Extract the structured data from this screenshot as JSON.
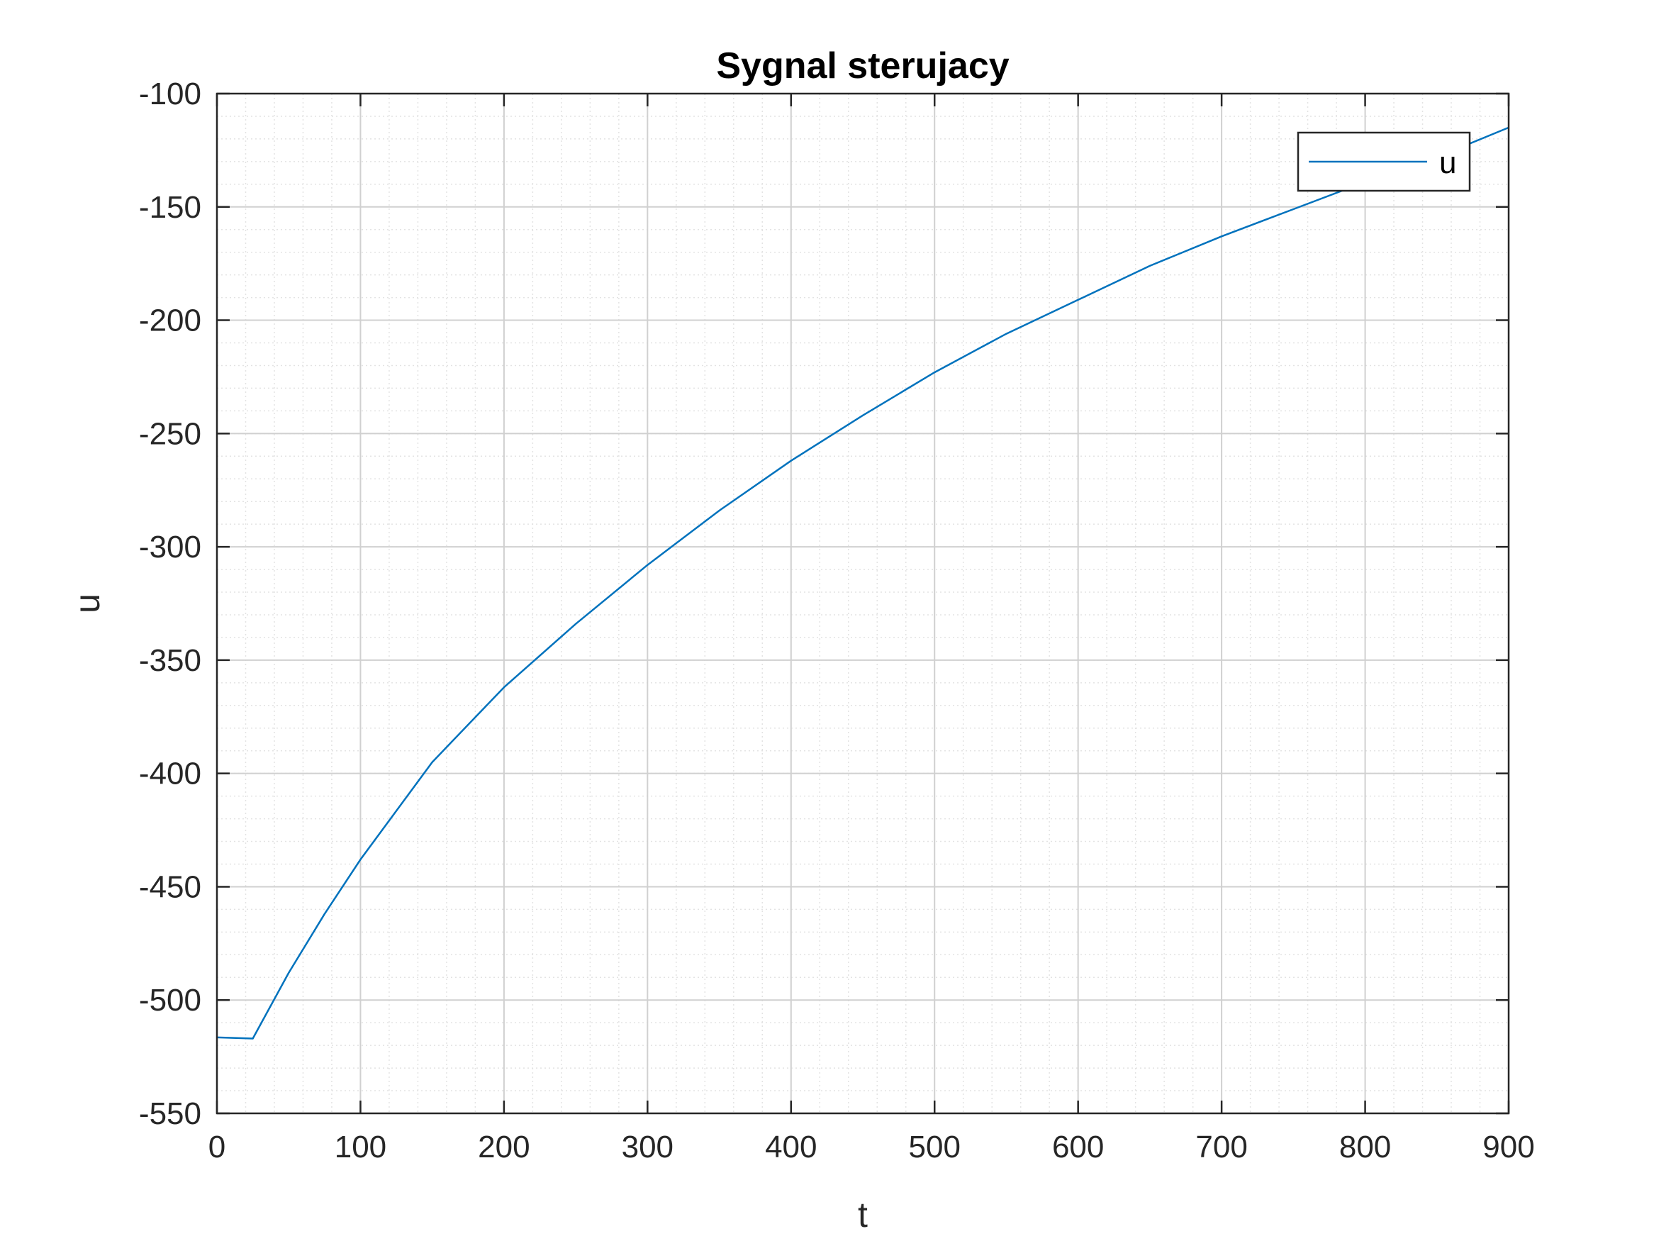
{
  "chart_data": {
    "type": "line",
    "title": "Sygnal sterujacy",
    "xlabel": "t",
    "ylabel": "u",
    "xlim": [
      0,
      900
    ],
    "ylim": [
      -550,
      -100
    ],
    "xticks": [
      0,
      100,
      200,
      300,
      400,
      500,
      600,
      700,
      800,
      900
    ],
    "yticks": [
      -550,
      -500,
      -450,
      -400,
      -350,
      -300,
      -250,
      -200,
      -150,
      -100
    ],
    "xtick_labels": [
      "0",
      "100",
      "200",
      "300",
      "400",
      "500",
      "600",
      "700",
      "800",
      "900"
    ],
    "ytick_labels": [
      "-550",
      "-500",
      "-450",
      "-400",
      "-350",
      "-300",
      "-250",
      "-200",
      "-150",
      "-100"
    ],
    "grid": true,
    "minor_grid": true,
    "legend": {
      "position": "top-right",
      "entries": [
        "u"
      ]
    },
    "series": [
      {
        "name": "u",
        "color": "#0072BD",
        "x": [
          0,
          25,
          50,
          75,
          100,
          150,
          200,
          250,
          300,
          350,
          400,
          450,
          500,
          550,
          600,
          650,
          700,
          750,
          800,
          850,
          900
        ],
        "y": [
          -516.5,
          -517,
          -488,
          -462,
          -438,
          -395,
          -362,
          -334,
          -308,
          -284,
          -262,
          -242,
          -223,
          -206,
          -191,
          -176,
          -163,
          -151,
          -139,
          -128,
          -115
        ]
      }
    ]
  },
  "colors": {
    "axis": "#262626",
    "grid_major": "#d0d0d0",
    "grid_minor": "#e3e3e3",
    "series": "#0072BD"
  }
}
